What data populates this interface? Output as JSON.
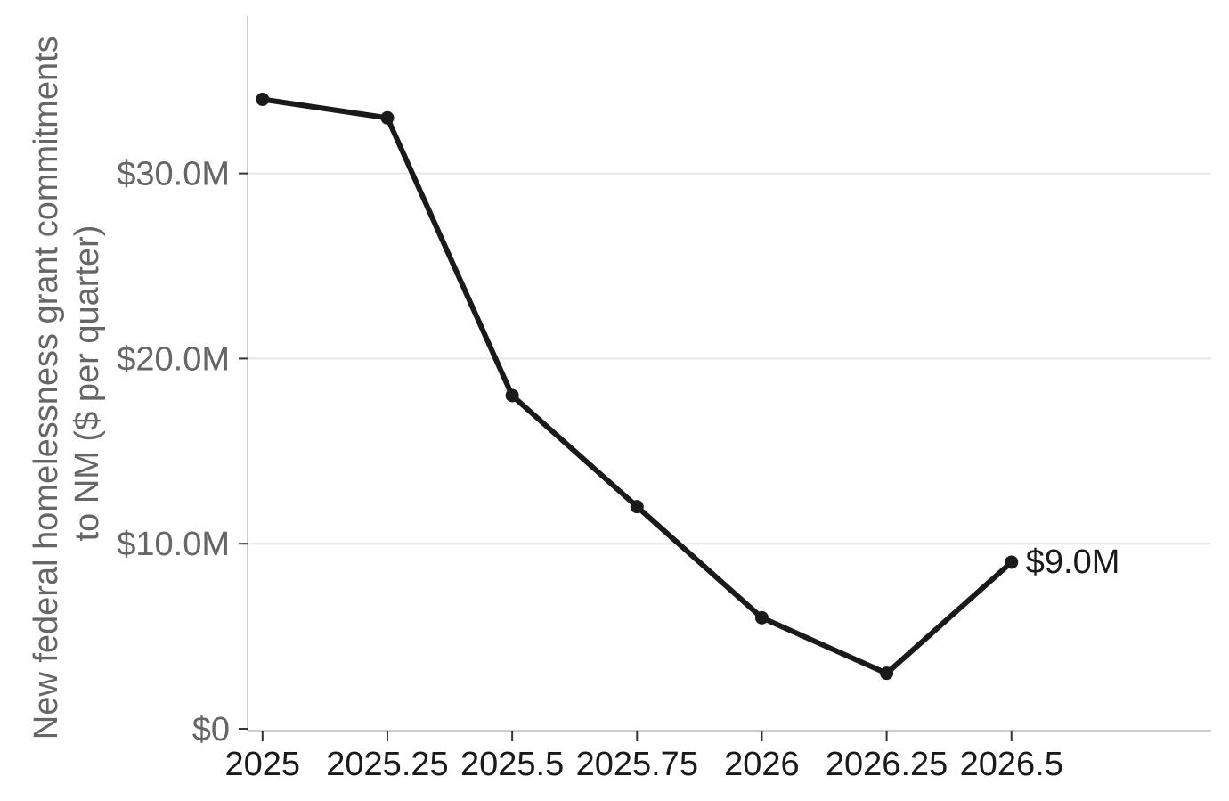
{
  "chart_data": {
    "type": "line",
    "ylabel_lines": [
      "New federal homelessness grant commitments",
      "to NM ($ per quarter)"
    ],
    "x": [
      2025,
      2025.25,
      2025.5,
      2025.75,
      2026,
      2026.25,
      2026.5
    ],
    "x_tick_labels": [
      "2025",
      "2025.25",
      "2025.5",
      "2025.75",
      "2026",
      "2026.25",
      "2026.5"
    ],
    "series": [
      {
        "values": [
          34000000,
          33000000,
          18000000,
          12000000,
          6000000,
          3000000,
          9000000
        ]
      }
    ],
    "yticks": [
      0,
      10000000,
      20000000,
      30000000
    ],
    "y_tick_labels": [
      "$0",
      "$10.0M",
      "$20.0M",
      "$30.0M"
    ],
    "end_label": "$9.0M",
    "xlim": [
      2024.97,
      2026.9
    ],
    "ylim": [
      0,
      38500000
    ],
    "grid": "horizontal",
    "line_color": "#1a1a1a",
    "grid_color": "#e6e6e6"
  }
}
